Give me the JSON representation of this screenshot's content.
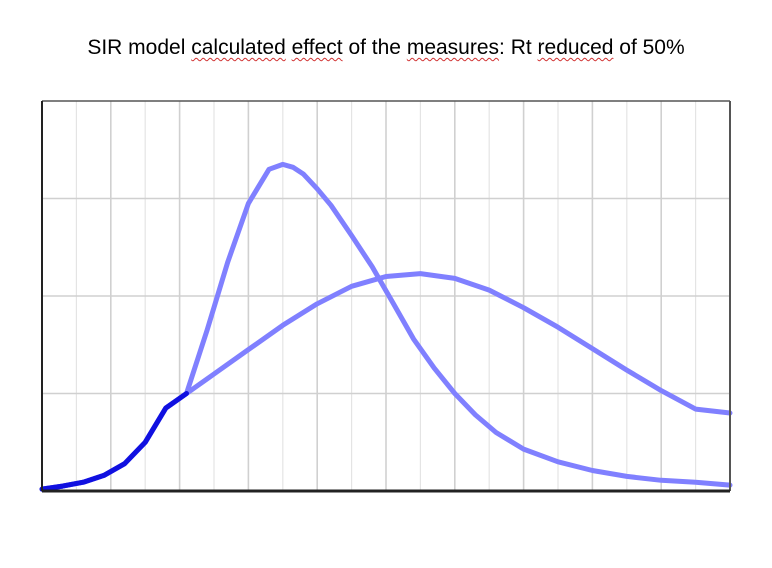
{
  "chart_data": {
    "type": "line",
    "title_parts": [
      {
        "text": "SIR model ",
        "squiggle": false
      },
      {
        "text": "calculated",
        "squiggle": true
      },
      {
        "text": " ",
        "squiggle": false
      },
      {
        "text": "effect",
        "squiggle": true
      },
      {
        "text": " of the ",
        "squiggle": false
      },
      {
        "text": "measures",
        "squiggle": true
      },
      {
        "text": ": Rt ",
        "squiggle": false
      },
      {
        "text": "reduced",
        "squiggle": true
      },
      {
        "text": " of 50%",
        "squiggle": false
      }
    ],
    "xlabel": "",
    "ylabel": "",
    "xlim": [
      0,
      100
    ],
    "ylim": [
      0,
      4
    ],
    "grid": true,
    "y_gridlines": [
      1,
      2,
      3
    ],
    "x_minor_step": 5,
    "x_major_step": 10,
    "colors": {
      "curve": "#8080ff",
      "overlap": "#1010e0",
      "axis": "#222222",
      "grid_major": "#d0d0d0",
      "grid_minor": "#e4e4e4"
    },
    "shared_segment_end_x": 21,
    "series": [
      {
        "x": [
          0,
          3,
          6,
          9,
          12,
          15,
          18,
          21,
          24,
          27,
          30,
          33,
          35,
          36.5,
          38,
          40,
          42,
          45,
          48,
          51,
          54,
          57,
          60,
          63,
          66,
          70,
          75,
          80,
          85,
          90,
          95,
          100
        ],
        "y": [
          0.02,
          0.05,
          0.09,
          0.16,
          0.28,
          0.5,
          0.85,
          1.0,
          1.65,
          2.35,
          2.95,
          3.3,
          3.35,
          3.32,
          3.25,
          3.1,
          2.93,
          2.62,
          2.3,
          1.93,
          1.56,
          1.26,
          1.0,
          0.78,
          0.6,
          0.43,
          0.3,
          0.21,
          0.15,
          0.11,
          0.09,
          0.06
        ]
      },
      {
        "x": [
          0,
          3,
          6,
          9,
          12,
          15,
          18,
          21,
          25,
          30,
          35,
          40,
          45,
          50,
          55,
          60,
          65,
          70,
          75,
          80,
          85,
          90,
          95,
          100
        ],
        "y": [
          0.02,
          0.05,
          0.09,
          0.16,
          0.28,
          0.5,
          0.85,
          1.0,
          1.2,
          1.45,
          1.7,
          1.92,
          2.1,
          2.2,
          2.23,
          2.18,
          2.06,
          1.88,
          1.68,
          1.46,
          1.24,
          1.03,
          0.84,
          0.8
        ]
      }
    ]
  }
}
